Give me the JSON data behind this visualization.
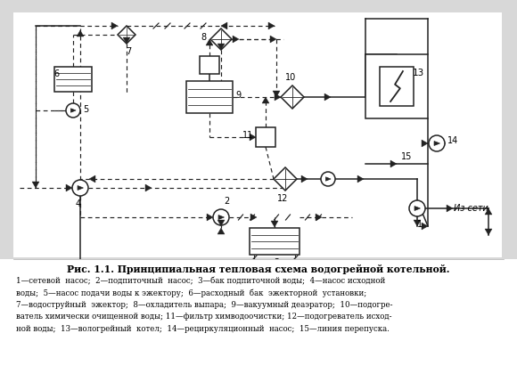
{
  "title": "Рис. 1.1. Принципиальная тепловая схема водогрейной котельной.",
  "caption_line1": "1—сетевой  насос;  2—подпиточный  насос;  3—бак подпиточной воды;  4—насос исходной",
  "caption_line2": "воды;  5—насос подачи воды к эжектору;  6—расходный  бак  эжекторной  установки;",
  "caption_line3": "7—водоструйный  эжектор;  8—охладитель выпара;  9—вакуумный деаэратор;  10—подогре-",
  "caption_line4": "ватель химически очищенной воды; 11—фильтр химводоочистки; 12—подогреватель исход-",
  "caption_line5": "ной воды;  13—вологрейный  котел;  14—рециркуляционный  насос;  15—линия перепуска.",
  "bg_color": "#d8d8d8",
  "diagram_bg": "#f0efea",
  "lc": "#222222",
  "lw_main": 1.1,
  "lw_dash": 0.85
}
